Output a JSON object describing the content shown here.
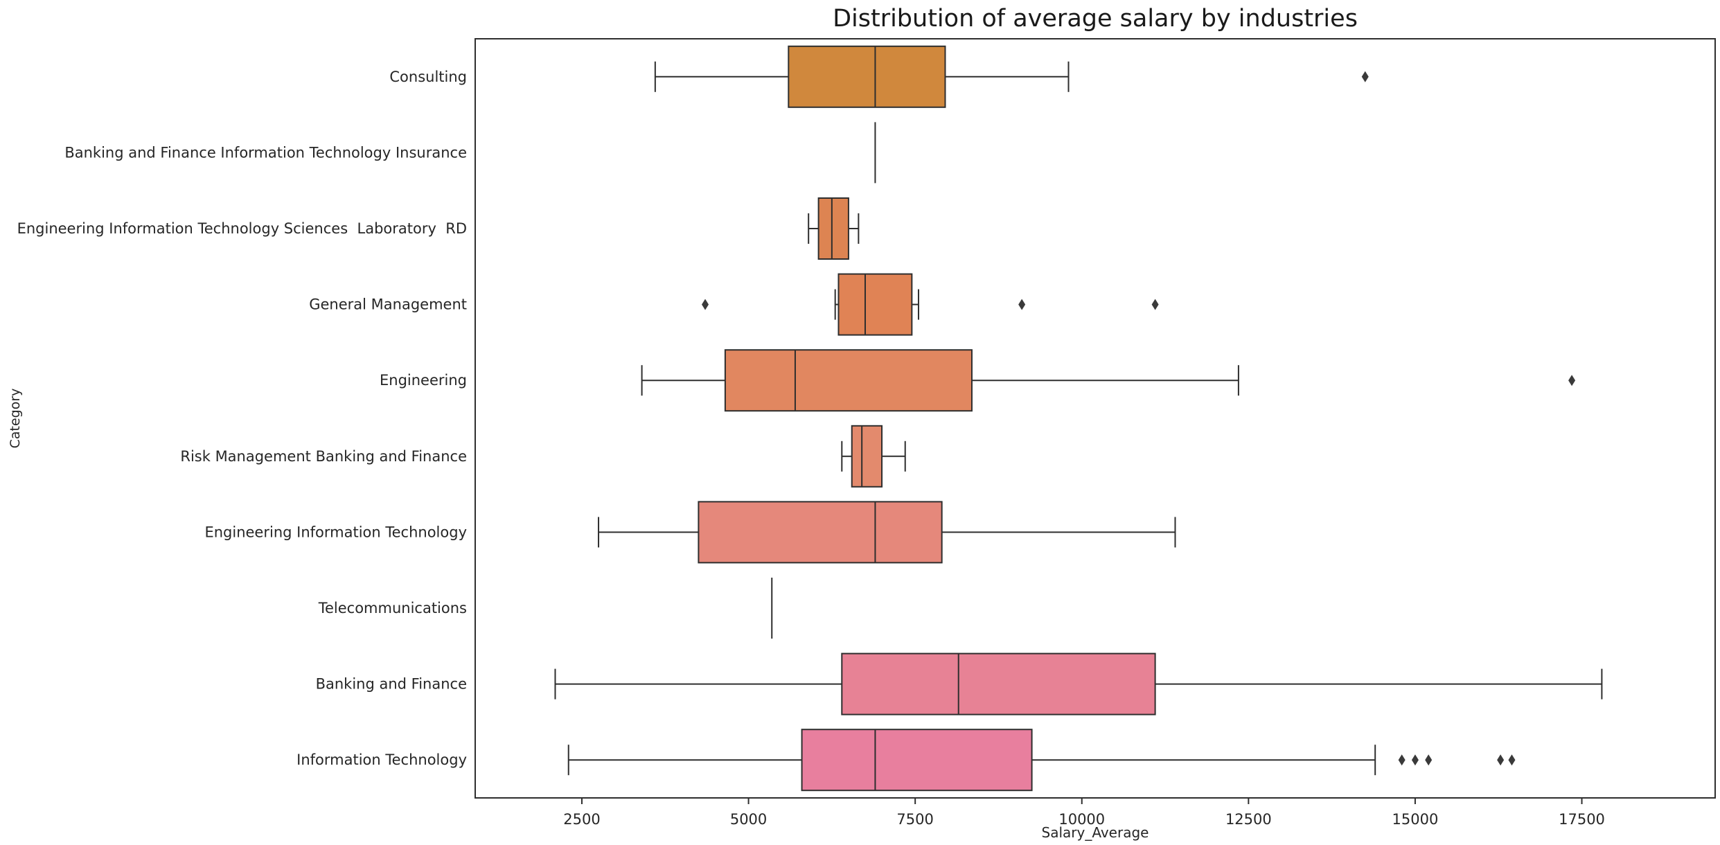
{
  "chart_data": {
    "type": "boxplot",
    "orientation": "horizontal",
    "title": "Distribution of average salary by industries",
    "xlabel": "Salary_Average",
    "ylabel": "Category",
    "xlim": [
      900,
      19500
    ],
    "xticks": [
      2500,
      5000,
      7500,
      10000,
      12500,
      15000,
      17500
    ],
    "grid": false,
    "line_color": "#2e2e2e",
    "outlier_color": "#3a3a3a",
    "categories": [
      "Consulting",
      "Banking and Finance Information Technology Insurance",
      "Engineering Information Technology Sciences  Laboratory  RD",
      "General Management",
      "Engineering",
      "Risk Management Banking and Finance",
      "Engineering Information Technology",
      "Telecommunications",
      "Banking and Finance",
      "Information Technology"
    ],
    "boxes": [
      {
        "category": "Consulting",
        "whisker_low": 3600,
        "q1": 5600,
        "median": 6900,
        "q3": 7950,
        "whisker_high": 9800,
        "outliers": [
          14250
        ],
        "color": "#d0883d"
      },
      {
        "category": "Banking and Finance Information Technology Insurance",
        "whisker_low": 6900,
        "q1": 6900,
        "median": 6900,
        "q3": 6900,
        "whisker_high": 6900,
        "outliers": [],
        "color": "#d8864a"
      },
      {
        "category": "Engineering Information Technology Sciences  Laboratory  RD",
        "whisker_low": 5900,
        "q1": 6050,
        "median": 6250,
        "q3": 6500,
        "whisker_high": 6650,
        "outliers": [],
        "color": "#dd8452"
      },
      {
        "category": "General Management",
        "whisker_low": 6300,
        "q1": 6350,
        "median": 6750,
        "q3": 7450,
        "whisker_high": 7550,
        "outliers": [
          4350,
          9100,
          11100
        ],
        "color": "#e08355"
      },
      {
        "category": "Engineering",
        "whisker_low": 3400,
        "q1": 4650,
        "median": 5700,
        "q3": 8350,
        "whisker_high": 12350,
        "outliers": [
          17350
        ],
        "color": "#e18760"
      },
      {
        "category": "Risk Management Banking and Finance",
        "whisker_low": 6400,
        "q1": 6550,
        "median": 6700,
        "q3": 7000,
        "whisker_high": 7350,
        "outliers": [],
        "color": "#e38a6d"
      },
      {
        "category": "Engineering Information Technology",
        "whisker_low": 2750,
        "q1": 4250,
        "median": 6900,
        "q3": 7900,
        "whisker_high": 11400,
        "outliers": [],
        "color": "#e5887b"
      },
      {
        "category": "Telecommunications",
        "whisker_low": 5350,
        "q1": 5350,
        "median": 5350,
        "q3": 5350,
        "whisker_high": 5350,
        "outliers": [],
        "color": "#e68588"
      },
      {
        "category": "Banking and Finance",
        "whisker_low": 2100,
        "q1": 6400,
        "median": 8150,
        "q3": 11100,
        "whisker_high": 17800,
        "outliers": [],
        "color": "#e78295"
      },
      {
        "category": "Information Technology",
        "whisker_low": 2300,
        "q1": 5800,
        "median": 6900,
        "q3": 9250,
        "whisker_high": 14400,
        "outliers": [
          14800,
          15000,
          15200,
          16280,
          16450
        ],
        "color": "#e87f9e"
      }
    ]
  }
}
